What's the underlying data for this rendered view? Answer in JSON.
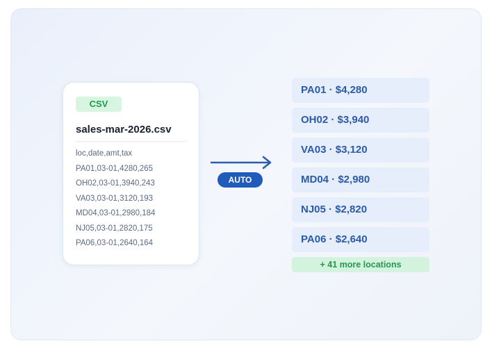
{
  "source_card": {
    "badge": "CSV",
    "filename": "sales-mar-2026.csv",
    "lines": [
      "loc,date,amt,tax",
      "PA01,03-01,4280,265",
      "OH02,03-01,3940,243",
      "VA03,03-01,3120,193",
      "MD04,03-01,2980,184",
      "NJ05,03-01,2820,175",
      "PA06,03-01,2640,164"
    ]
  },
  "arrow": {
    "label": "AUTO"
  },
  "results": {
    "items": [
      "PA01 · $4,280",
      "OH02 · $3,940",
      "VA03 · $3,120",
      "MD04 · $2,980",
      "NJ05 · $2,820",
      "PA06 · $2,640"
    ],
    "more": "+ 41 more locations"
  }
}
